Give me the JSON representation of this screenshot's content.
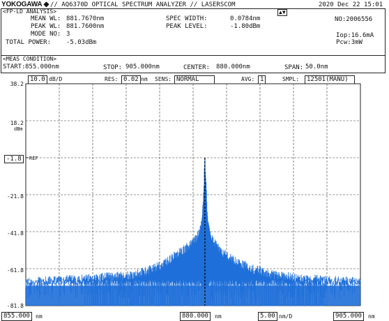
{
  "header": {
    "brand": "YOKOGAWA",
    "brand_symbol": "◆",
    "title": "// AQ6370D OPTICAL SPECTRUM ANALYZER // LASERSCOM",
    "datetime": "2020 Dec 22 15:01",
    "arrows": "▲▼"
  },
  "analysis": {
    "section_label": "<FP-LD ANALYSIS>",
    "mean_wl_label": "MEAN WL:",
    "mean_wl": "881.7670nm",
    "peak_wl_label": "PEAK WL:",
    "peak_wl": "881.7600nm",
    "mode_no_label": "MODE NO:",
    "mode_no": "3",
    "total_power_label": "TOTAL POWER:",
    "total_power": "-5.03dBm",
    "spec_width_label": "SPEC WIDTH:",
    "spec_width": "0.0784nm",
    "peak_level_label": "PEAK LEVEL:",
    "peak_level": "-1.80dBm",
    "no_label": "NO:",
    "no_value": "2006556",
    "iop_label": "Iop:",
    "iop_value": "16.6mA",
    "pcw_label": "Pcw:",
    "pcw_value": "3mW"
  },
  "meas": {
    "section_label": "<MEAS CONDITION>",
    "start_label": "START:",
    "start": "855.000nm",
    "stop_label": "STOP:",
    "stop": "905.000nm",
    "center_label": "CENTER:",
    "center": "880.000nm",
    "span_label": "SPAN:",
    "span": "50.0nm"
  },
  "controls": {
    "scale_value": "10.0",
    "scale_unit": "dB/D",
    "res_label": "RES:",
    "res_value": "0.02",
    "res_unit": "nm",
    "sens_label": "SENS:",
    "sens_value": "NORMAL",
    "avg_label": "AVG:",
    "avg_value": "1",
    "smpl_label": "SMPL:",
    "smpl_value": "12501(MANU)"
  },
  "plot": {
    "y_ticks": [
      "38.2",
      "18.2",
      "-1.8",
      "-21.8",
      "-41.8",
      "-61.8",
      "-81.8"
    ],
    "y_unit": "dBm",
    "ref_value": "-1.8",
    "ref_label": "REF",
    "x_start": "855.000",
    "x_center": "880.000",
    "x_per_div": "5.00",
    "x_per_div_unit": "nm/D",
    "x_stop": "905.000",
    "x_unit": "nm",
    "trace_color": "#1e6fd9",
    "marker_color": "#000000"
  },
  "chart_data": {
    "type": "line",
    "xlabel": "nm",
    "ylabel": "dBm",
    "xlim": [
      855.0,
      905.0
    ],
    "ylim": [
      -81.8,
      38.2
    ],
    "grid": true,
    "series": [
      {
        "x": [
          855.0,
          860.0,
          865.0,
          868.0,
          871.0,
          874.0,
          876.0,
          878.0,
          879.5,
          880.5,
          881.0,
          881.4,
          881.76,
          882.2,
          882.6,
          883.2,
          884.0,
          885.5,
          887.0,
          889.0,
          892.0,
          896.0,
          900.0,
          905.0
        ],
        "values": [
          -69,
          -68,
          -67,
          -66,
          -65,
          -62,
          -58,
          -53,
          -49,
          -45,
          -40,
          -33,
          -1.8,
          -36,
          -43,
          -47,
          -52,
          -56,
          -59,
          -62,
          -65,
          -67,
          -68,
          -69
        ]
      }
    ],
    "peak_x": 881.76,
    "peak_y": -1.8
  }
}
